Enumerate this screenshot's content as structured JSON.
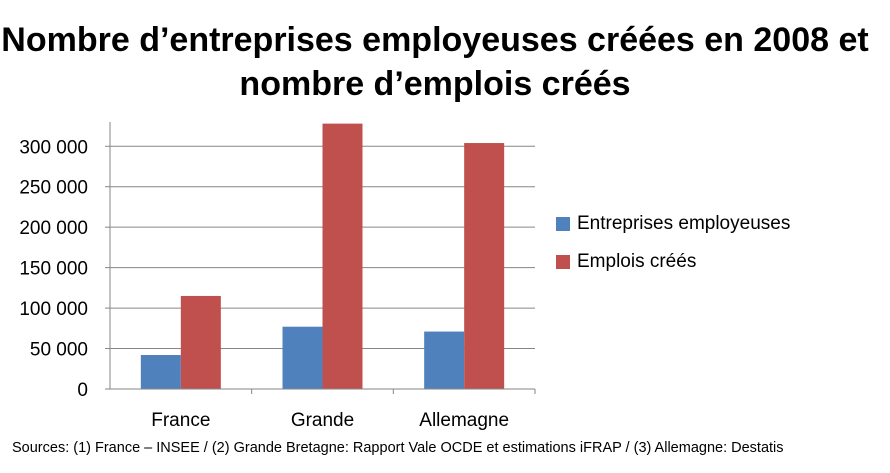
{
  "chart_data": {
    "type": "bar",
    "title": "Nombre d’entreprises employeuses créées en 2008 et nombre d’emplois créés",
    "categories": [
      "France",
      "Grande",
      "Allemagne"
    ],
    "series": [
      {
        "name": "Entreprises employeuses",
        "color": "#4f81bd",
        "values": [
          42000,
          77000,
          71000
        ]
      },
      {
        "name": "Emplois créés",
        "color": "#c0504d",
        "values": [
          115000,
          328000,
          304000
        ]
      }
    ],
    "yticks": [
      "0",
      "50 000",
      "100 000",
      "150 000",
      "200 000",
      "250 000",
      "300 000"
    ],
    "ylim": [
      0,
      330000
    ],
    "grid": true,
    "legend_position": "right"
  },
  "source": "Sources: (1) France – INSEE / (2) Grande Bretagne: Rapport Vale OCDE et estimations iFRAP / (3) Allemagne: Destatis"
}
